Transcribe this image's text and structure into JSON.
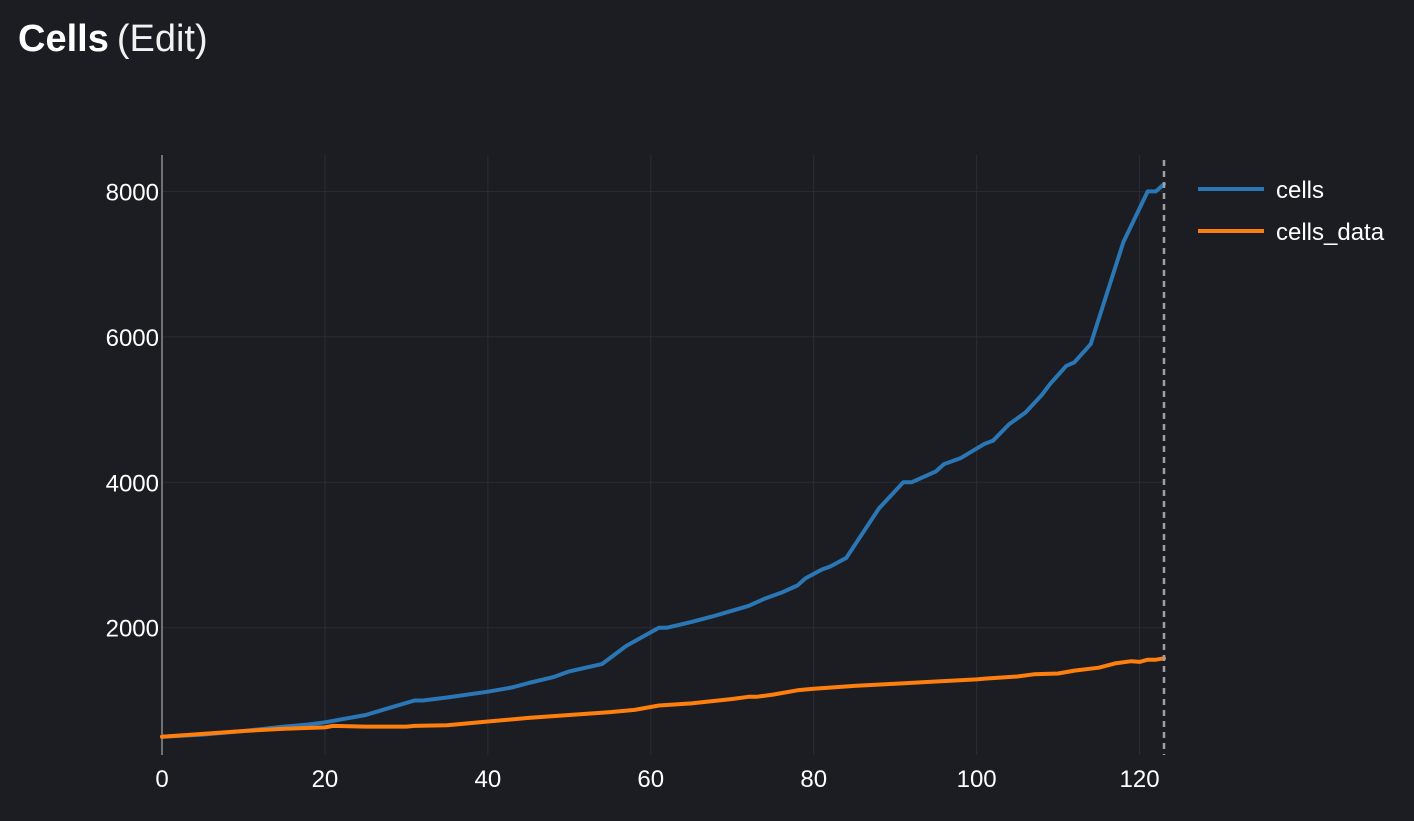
{
  "header": {
    "title": "Cells",
    "edit_label": "(Edit)"
  },
  "colors": {
    "background": "#1b1d23",
    "grid": "#2a2d33",
    "axis": "#8a8d92",
    "cells": "#2b76b5",
    "cells_data": "#ff7f0e",
    "cursor": "#a0a0a0"
  },
  "chart_data": {
    "type": "line",
    "title": "",
    "xlabel": "",
    "ylabel": "",
    "xlim": [
      0,
      123
    ],
    "ylim": [
      250,
      8500
    ],
    "xticks": [
      "0",
      "20",
      "40",
      "60",
      "80",
      "100",
      "120"
    ],
    "yticks": [
      "2000",
      "4000",
      "6000",
      "8000"
    ],
    "grid": true,
    "legend_position": "top-right",
    "cursor_x": 123,
    "series": [
      {
        "name": "cells",
        "color": "#2b76b5",
        "x": [
          0,
          5,
          10,
          15,
          18,
          20,
          25,
          28,
          31,
          32,
          35,
          40,
          43,
          45,
          48,
          50,
          52,
          54,
          57,
          61,
          62,
          65,
          68,
          72,
          74,
          76,
          78,
          79,
          81,
          82,
          84,
          86,
          88,
          91,
          92,
          95,
          96,
          98,
          101,
          102,
          104,
          106,
          108,
          109,
          111,
          112,
          114,
          116,
          118,
          121,
          122,
          123
        ],
        "y": [
          500,
          530,
          580,
          640,
          670,
          700,
          800,
          900,
          1000,
          1000,
          1040,
          1120,
          1180,
          1240,
          1320,
          1400,
          1450,
          1500,
          1750,
          2000,
          2000,
          2080,
          2170,
          2300,
          2400,
          2480,
          2580,
          2680,
          2800,
          2840,
          2960,
          3300,
          3640,
          4000,
          4000,
          4150,
          4250,
          4330,
          4530,
          4570,
          4800,
          4960,
          5200,
          5350,
          5600,
          5650,
          5900,
          6600,
          7300,
          8000,
          8000,
          8100
        ]
      },
      {
        "name": "cells_data",
        "color": "#ff7f0e",
        "x": [
          0,
          5,
          10,
          15,
          20,
          21,
          25,
          30,
          31,
          35,
          40,
          45,
          50,
          55,
          58,
          61,
          65,
          70,
          72,
          73,
          75,
          78,
          80,
          85,
          90,
          95,
          100,
          101,
          105,
          107,
          110,
          112,
          115,
          117,
          119,
          120,
          121,
          122,
          123
        ],
        "y": [
          500,
          540,
          580,
          610,
          630,
          650,
          640,
          640,
          650,
          660,
          710,
          760,
          800,
          840,
          870,
          930,
          960,
          1020,
          1050,
          1050,
          1080,
          1140,
          1160,
          1200,
          1230,
          1260,
          1290,
          1300,
          1330,
          1360,
          1370,
          1410,
          1450,
          1510,
          1540,
          1530,
          1560,
          1560,
          1580
        ]
      }
    ]
  }
}
